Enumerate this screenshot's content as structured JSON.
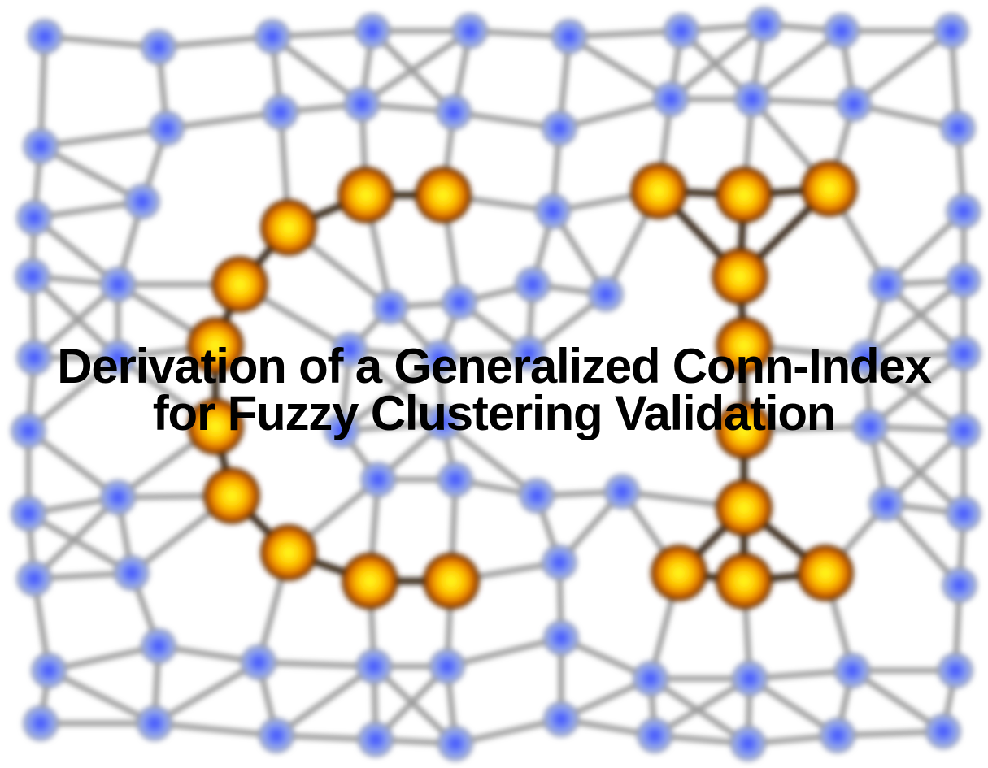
{
  "title": "Derivation of a Generalized Conn-Index for Fuzzy Clustering Validation"
}
